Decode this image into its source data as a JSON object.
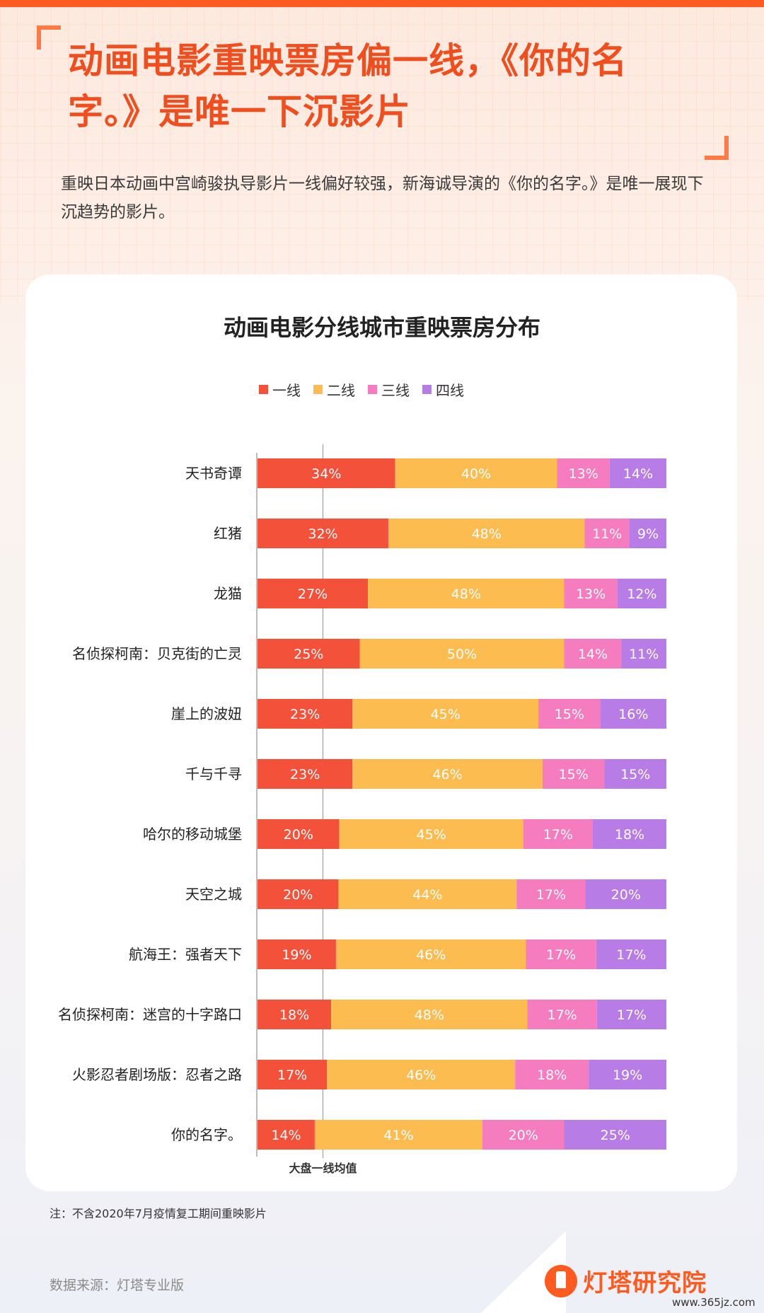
{
  "headline": "动画电影重映票房偏一线，《你的名字。》是唯一下沉影片",
  "subtitle": "重映日本动画中宫崎骏执导影片一线偏好较强，新海诚导演的《你的名字。》是唯一展现下沉趋势的影片。",
  "note": "注：不含2020年7月疫情复工期间重映影片",
  "source": "数据来源：灯塔专业版",
  "logo_text": "灯塔研究院",
  "watermark": "www.365jz.com",
  "chart_data": {
    "type": "bar",
    "orientation": "horizontal",
    "stacked": "percent",
    "title": "动画电影分线城市重映票房分布",
    "categories": [
      "天书奇谭",
      "红猪",
      "龙猫",
      "名侦探柯南：贝克街的亡灵",
      "崖上的波妞",
      "千与千寻",
      "哈尔的移动城堡",
      "天空之城",
      "航海王：强者天下",
      "名侦探柯南：迷宫的十字路口",
      "火影忍者剧场版：忍者之路",
      "你的名字。"
    ],
    "series": [
      {
        "name": "一线",
        "color": "#f4513a",
        "values": [
          34,
          32,
          27,
          25,
          23,
          23,
          20,
          20,
          19,
          18,
          17,
          14
        ]
      },
      {
        "name": "二线",
        "color": "#fcbc4f",
        "values": [
          40,
          48,
          48,
          50,
          45,
          46,
          45,
          44,
          46,
          48,
          46,
          41
        ]
      },
      {
        "name": "三线",
        "color": "#f47cbf",
        "values": [
          13,
          11,
          13,
          14,
          15,
          15,
          17,
          17,
          17,
          17,
          18,
          20
        ]
      },
      {
        "name": "四线",
        "color": "#b77ce6",
        "values": [
          14,
          9,
          12,
          11,
          16,
          15,
          18,
          20,
          17,
          17,
          19,
          25
        ]
      }
    ],
    "value_suffix": "%",
    "reference_line": {
      "label": "大盘一线均值",
      "value": 16
    },
    "legend_position": "top",
    "grid": false
  }
}
